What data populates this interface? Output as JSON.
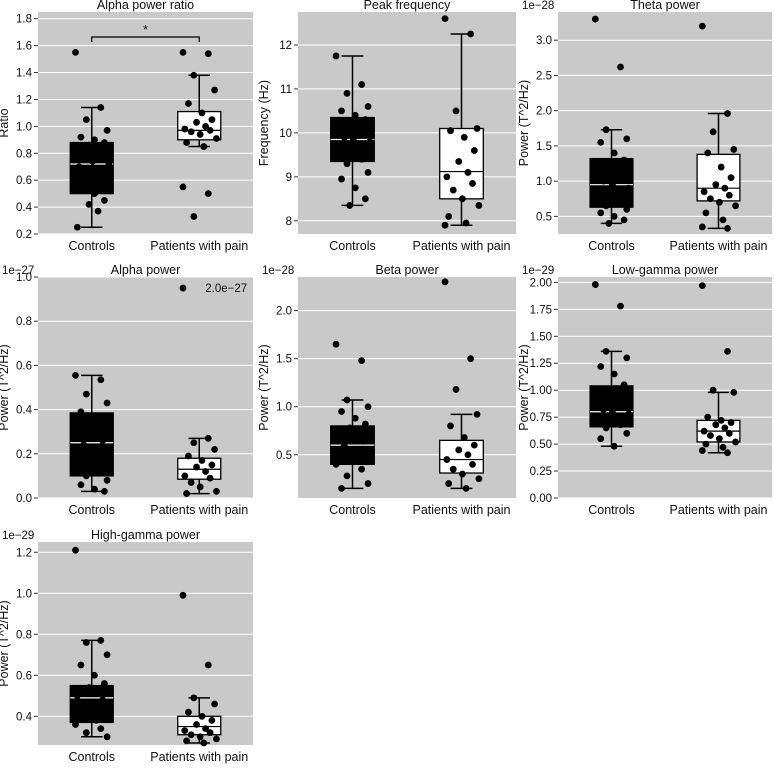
{
  "colors": {
    "panel_bg": "#c9c9c9",
    "grid": "#ffffff",
    "controls_box": "#000000",
    "pain_box": "#ffffff",
    "point": "#000000",
    "line": "#000000"
  },
  "chart_data": [
    {
      "type": "box",
      "title": "Alpha power ratio",
      "ylabel": "Ratio",
      "exponent": "",
      "ylim": [
        0.2,
        1.85
      ],
      "ytick_values": [
        0.2,
        0.4,
        0.6,
        0.8,
        1.0,
        1.2,
        1.4,
        1.6,
        1.8
      ],
      "ytick_labels": [
        "0.2",
        "0.4",
        "0.6",
        "0.8",
        "1.0",
        "1.2",
        "1.4",
        "1.6",
        "1.8"
      ],
      "categories": [
        "Controls",
        "Patients with pain"
      ],
      "significance": "*",
      "boxes": [
        {
          "q1": 0.5,
          "median": 0.72,
          "q3": 0.88,
          "whisker_low": 0.25,
          "whisker_high": 1.14,
          "points": [
            1.55,
            1.14,
            1.05,
            0.97,
            0.92,
            0.9,
            0.88,
            0.86,
            0.83,
            0.8,
            0.78,
            0.76,
            0.74,
            0.72,
            0.7,
            0.68,
            0.65,
            0.62,
            0.6,
            0.56,
            0.53,
            0.5,
            0.45,
            0.42,
            0.37,
            0.25
          ]
        },
        {
          "q1": 0.9,
          "median": 0.97,
          "q3": 1.11,
          "whisker_low": 0.85,
          "whisker_high": 1.38,
          "points": [
            1.55,
            1.54,
            1.38,
            1.27,
            1.17,
            1.1,
            1.05,
            1.03,
            1.0,
            0.98,
            0.97,
            0.96,
            0.94,
            0.91,
            0.88,
            0.85,
            0.55,
            0.5,
            0.33
          ]
        }
      ]
    },
    {
      "type": "box",
      "title": "Peak frequency",
      "ylabel": "Frequency (Hz)",
      "exponent": "",
      "ylim": [
        7.7,
        12.75
      ],
      "ytick_values": [
        8,
        9,
        10,
        11,
        12
      ],
      "ytick_labels": [
        "8",
        "9",
        "10",
        "11",
        "12"
      ],
      "categories": [
        "Controls",
        "Patients with pain"
      ],
      "boxes": [
        {
          "q1": 9.35,
          "median": 9.85,
          "q3": 10.35,
          "whisker_low": 8.35,
          "whisker_high": 11.75,
          "points": [
            11.75,
            11.1,
            10.9,
            10.6,
            10.5,
            10.4,
            10.3,
            10.2,
            10.1,
            10.0,
            9.95,
            9.9,
            9.85,
            9.8,
            9.7,
            9.6,
            9.5,
            9.4,
            9.3,
            9.1,
            8.95,
            8.75,
            8.5,
            8.35
          ]
        },
        {
          "q1": 8.5,
          "median": 9.12,
          "q3": 10.1,
          "whisker_low": 7.9,
          "whisker_high": 12.25,
          "points": [
            12.6,
            12.25,
            10.5,
            10.1,
            10.05,
            9.9,
            9.6,
            9.35,
            9.1,
            9.0,
            8.85,
            8.7,
            8.5,
            8.35,
            8.1,
            7.95,
            7.9
          ]
        }
      ]
    },
    {
      "type": "box",
      "title": "Theta power",
      "ylabel": "Power (T^2/Hz)",
      "exponent": "1e−28",
      "ylim": [
        0.25,
        3.4
      ],
      "ytick_values": [
        0.5,
        1.0,
        1.5,
        2.0,
        2.5,
        3.0
      ],
      "ytick_labels": [
        "0.5",
        "1.0",
        "1.5",
        "2.0",
        "2.5",
        "3.0"
      ],
      "categories": [
        "Controls",
        "Patients with pain"
      ],
      "boxes": [
        {
          "q1": 0.63,
          "median": 0.95,
          "q3": 1.32,
          "whisker_low": 0.4,
          "whisker_high": 1.73,
          "points": [
            3.3,
            2.62,
            1.73,
            1.6,
            1.55,
            1.4,
            1.3,
            1.25,
            1.2,
            1.1,
            1.05,
            1.0,
            0.95,
            0.9,
            0.85,
            0.8,
            0.75,
            0.7,
            0.65,
            0.6,
            0.55,
            0.5,
            0.45,
            0.4
          ]
        },
        {
          "q1": 0.72,
          "median": 0.9,
          "q3": 1.38,
          "whisker_low": 0.33,
          "whisker_high": 1.96,
          "points": [
            3.2,
            1.96,
            1.7,
            1.45,
            1.4,
            1.2,
            1.05,
            0.95,
            0.9,
            0.85,
            0.8,
            0.75,
            0.7,
            0.65,
            0.55,
            0.45,
            0.35,
            0.33
          ]
        }
      ]
    },
    {
      "type": "box",
      "title": "Alpha power",
      "ylabel": "Power (T^2/Hz)",
      "exponent": "1e−27",
      "ylim": [
        0.0,
        1.0
      ],
      "ytick_values": [
        0.0,
        0.2,
        0.4,
        0.6,
        0.8,
        1.0
      ],
      "ytick_labels": [
        "0.0",
        "0.2",
        "0.4",
        "0.6",
        "0.8",
        "1.0"
      ],
      "categories": [
        "Controls",
        "Patients with pain"
      ],
      "annotation": {
        "text": "2.0e−27",
        "value": 0.95
      },
      "boxes": [
        {
          "q1": 0.1,
          "median": 0.25,
          "q3": 0.385,
          "whisker_low": 0.03,
          "whisker_high": 0.555,
          "points": [
            0.555,
            0.535,
            0.47,
            0.43,
            0.39,
            0.37,
            0.35,
            0.33,
            0.3,
            0.28,
            0.26,
            0.24,
            0.22,
            0.2,
            0.18,
            0.16,
            0.14,
            0.12,
            0.1,
            0.08,
            0.06,
            0.04,
            0.03
          ]
        },
        {
          "q1": 0.085,
          "median": 0.13,
          "q3": 0.18,
          "whisker_low": 0.02,
          "whisker_high": 0.27,
          "points": [
            0.95,
            0.27,
            0.25,
            0.22,
            0.19,
            0.17,
            0.15,
            0.14,
            0.12,
            0.1,
            0.09,
            0.07,
            0.05,
            0.03,
            0.02
          ]
        }
      ]
    },
    {
      "type": "box",
      "title": "Beta power",
      "ylabel": "Power (T^2/Hz)",
      "exponent": "1e−28",
      "ylim": [
        0.05,
        2.35
      ],
      "ytick_values": [
        0.5,
        1.0,
        1.5,
        2.0
      ],
      "ytick_labels": [
        "0.5",
        "1.0",
        "1.5",
        "2.0"
      ],
      "categories": [
        "Controls",
        "Patients with pain"
      ],
      "boxes": [
        {
          "q1": 0.4,
          "median": 0.6,
          "q3": 0.8,
          "whisker_low": 0.15,
          "whisker_high": 1.07,
          "points": [
            1.65,
            1.48,
            1.07,
            1.0,
            0.95,
            0.88,
            0.82,
            0.78,
            0.72,
            0.68,
            0.64,
            0.6,
            0.55,
            0.52,
            0.48,
            0.44,
            0.4,
            0.35,
            0.28,
            0.2,
            0.15
          ]
        },
        {
          "q1": 0.31,
          "median": 0.45,
          "q3": 0.65,
          "whisker_low": 0.15,
          "whisker_high": 0.92,
          "points": [
            2.3,
            1.5,
            1.18,
            0.92,
            0.8,
            0.68,
            0.6,
            0.55,
            0.5,
            0.45,
            0.4,
            0.35,
            0.3,
            0.25,
            0.2,
            0.15
          ]
        }
      ]
    },
    {
      "type": "box",
      "title": "Low-gamma power",
      "ylabel": "Power (T^2/Hz)",
      "exponent": "1e−29",
      "ylim": [
        0.0,
        2.05
      ],
      "ytick_values": [
        0.0,
        0.25,
        0.5,
        0.75,
        1.0,
        1.25,
        1.5,
        1.75,
        2.0
      ],
      "ytick_labels": [
        "0.00",
        "0.25",
        "0.50",
        "0.75",
        "1.00",
        "1.25",
        "1.50",
        "1.75",
        "2.00"
      ],
      "categories": [
        "Controls",
        "Patients with pain"
      ],
      "boxes": [
        {
          "q1": 0.66,
          "median": 0.8,
          "q3": 1.04,
          "whisker_low": 0.48,
          "whisker_high": 1.36,
          "points": [
            1.98,
            1.78,
            1.36,
            1.3,
            1.22,
            1.15,
            1.05,
            1.0,
            0.95,
            0.9,
            0.85,
            0.82,
            0.8,
            0.78,
            0.75,
            0.72,
            0.7,
            0.68,
            0.65,
            0.6,
            0.55,
            0.48
          ]
        },
        {
          "q1": 0.52,
          "median": 0.62,
          "q3": 0.72,
          "whisker_low": 0.42,
          "whisker_high": 0.98,
          "points": [
            1.97,
            1.36,
            1.0,
            0.98,
            0.75,
            0.72,
            0.7,
            0.68,
            0.65,
            0.62,
            0.6,
            0.58,
            0.55,
            0.52,
            0.5,
            0.47,
            0.44,
            0.42
          ]
        }
      ]
    },
    {
      "type": "box",
      "title": "High-gamma power",
      "ylabel": "Power (T^2/Hz)",
      "exponent": "1e−29",
      "ylim": [
        0.26,
        1.25
      ],
      "ytick_values": [
        0.4,
        0.6,
        0.8,
        1.0,
        1.2
      ],
      "ytick_labels": [
        "0.4",
        "0.6",
        "0.8",
        "1.0",
        "1.2"
      ],
      "categories": [
        "Controls",
        "Patients with pain"
      ],
      "boxes": [
        {
          "q1": 0.37,
          "median": 0.49,
          "q3": 0.55,
          "whisker_low": 0.3,
          "whisker_high": 0.77,
          "points": [
            1.21,
            0.77,
            0.76,
            0.7,
            0.65,
            0.6,
            0.56,
            0.54,
            0.52,
            0.5,
            0.48,
            0.46,
            0.44,
            0.42,
            0.4,
            0.38,
            0.36,
            0.34,
            0.32,
            0.3
          ]
        },
        {
          "q1": 0.31,
          "median": 0.35,
          "q3": 0.4,
          "whisker_low": 0.27,
          "whisker_high": 0.49,
          "points": [
            0.99,
            0.65,
            0.49,
            0.46,
            0.42,
            0.4,
            0.38,
            0.36,
            0.34,
            0.33,
            0.32,
            0.31,
            0.3,
            0.29,
            0.28,
            0.27
          ]
        }
      ]
    }
  ]
}
